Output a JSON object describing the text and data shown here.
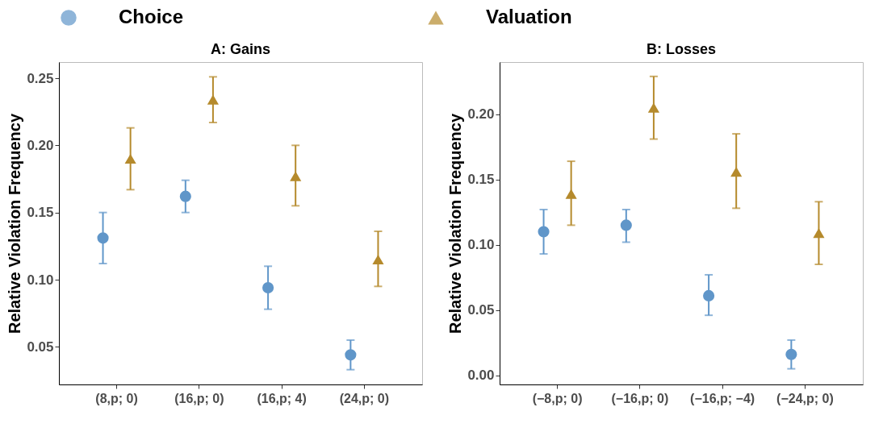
{
  "chart_data": [
    {
      "type": "scatter",
      "title": "A: Gains",
      "ylabel": "Relative Violation Frequency",
      "legend": "top",
      "grid": false,
      "categories": [
        "(8,p; 0)",
        "(16,p; 0)",
        "(16,p; 4)",
        "(24,p; 0)"
      ],
      "ylim": [
        0.022,
        0.262
      ],
      "yticks": [
        {
          "value": 0.05,
          "label": "0.05"
        },
        {
          "value": 0.1,
          "label": "0.10"
        },
        {
          "value": 0.15,
          "label": "0.15"
        },
        {
          "value": 0.2,
          "label": "0.20"
        },
        {
          "value": 0.25,
          "label": "0.25"
        }
      ],
      "series": [
        {
          "name": "Choice",
          "color": "#6096c9",
          "marker": "circle",
          "values": [
            0.131,
            0.162,
            0.094,
            0.044
          ],
          "errors": [
            [
              0.112,
              0.15
            ],
            [
              0.15,
              0.174
            ],
            [
              0.078,
              0.11
            ],
            [
              0.033,
              0.055
            ]
          ]
        },
        {
          "name": "Valuation",
          "color": "#b58a2c",
          "marker": "triangle",
          "values": [
            0.19,
            0.234,
            0.177,
            0.115
          ],
          "errors": [
            [
              0.167,
              0.213
            ],
            [
              0.217,
              0.251
            ],
            [
              0.155,
              0.2
            ],
            [
              0.095,
              0.136
            ]
          ]
        }
      ]
    },
    {
      "type": "scatter",
      "title": "B: Losses",
      "ylabel": "Relative Violation Frequency",
      "legend": "top",
      "grid": false,
      "categories": [
        "(−8,p; 0)",
        "(−16,p; 0)",
        "(−16,p; −4)",
        "(−24,p; 0)"
      ],
      "ylim": [
        -0.007,
        0.24
      ],
      "yticks": [
        {
          "value": 0,
          "label": "0.00"
        },
        {
          "value": 0.05,
          "label": "0.05"
        },
        {
          "value": 0.1,
          "label": "0.10"
        },
        {
          "value": 0.15,
          "label": "0.15"
        },
        {
          "value": 0.2,
          "label": "0.20"
        }
      ],
      "series": [
        {
          "name": "Choice",
          "color": "#6096c9",
          "marker": "circle",
          "values": [
            0.11,
            0.115,
            0.061,
            0.016
          ],
          "errors": [
            [
              0.093,
              0.127
            ],
            [
              0.102,
              0.127
            ],
            [
              0.046,
              0.077
            ],
            [
              0.005,
              0.027
            ]
          ]
        },
        {
          "name": "Valuation",
          "color": "#b58a2c",
          "marker": "triangle",
          "values": [
            0.139,
            0.205,
            0.156,
            0.109
          ],
          "errors": [
            [
              0.115,
              0.164
            ],
            [
              0.181,
              0.229
            ],
            [
              0.128,
              0.185
            ],
            [
              0.085,
              0.133
            ]
          ]
        }
      ]
    }
  ]
}
